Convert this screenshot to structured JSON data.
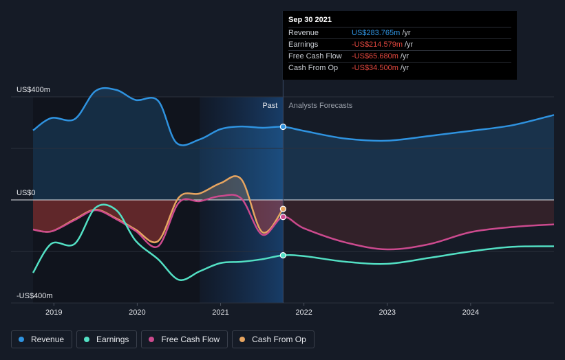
{
  "chart_data": {
    "type": "line",
    "currency_labels": {
      "top": "US$400m",
      "zero": "US$0",
      "bottom": "-US$400m"
    },
    "ylim": [
      -400,
      400
    ],
    "xlim": [
      2018.75,
      2025.0
    ],
    "x_ticks": [
      {
        "value": 2019,
        "label": "2019"
      },
      {
        "value": 2020,
        "label": "2020"
      },
      {
        "value": 2021,
        "label": "2021"
      },
      {
        "value": 2022,
        "label": "2022"
      },
      {
        "value": 2023,
        "label": "2023"
      },
      {
        "value": 2024,
        "label": "2024"
      }
    ],
    "past_label": "Past",
    "forecast_label": "Analysts Forecasts",
    "divider_x": 2021.75,
    "highlight_start": 2020.75,
    "series": [
      {
        "name": "Revenue",
        "color": "#2f93e0",
        "past": [
          [
            2018.75,
            270
          ],
          [
            2018.97,
            318
          ],
          [
            2019.25,
            314
          ],
          [
            2019.5,
            423
          ],
          [
            2019.75,
            427
          ],
          [
            2019.98,
            388
          ],
          [
            2020.25,
            385
          ],
          [
            2020.47,
            222
          ],
          [
            2020.75,
            235
          ],
          [
            2021.0,
            275
          ],
          [
            2021.25,
            285
          ],
          [
            2021.5,
            280
          ],
          [
            2021.75,
            284
          ]
        ],
        "forecast": [
          [
            2021.75,
            284
          ],
          [
            2022.0,
            268
          ],
          [
            2022.5,
            238
          ],
          [
            2023.0,
            230
          ],
          [
            2023.5,
            248
          ],
          [
            2024.0,
            268
          ],
          [
            2024.5,
            290
          ],
          [
            2025.0,
            330
          ]
        ]
      },
      {
        "name": "Earnings",
        "color": "#53e0c4",
        "past": [
          [
            2018.75,
            -283
          ],
          [
            2018.97,
            -170
          ],
          [
            2019.25,
            -170
          ],
          [
            2019.5,
            -30
          ],
          [
            2019.75,
            -40
          ],
          [
            2019.98,
            -158
          ],
          [
            2020.25,
            -230
          ],
          [
            2020.5,
            -310
          ],
          [
            2020.75,
            -277
          ],
          [
            2021.0,
            -245
          ],
          [
            2021.25,
            -240
          ],
          [
            2021.5,
            -230
          ],
          [
            2021.75,
            -215
          ]
        ],
        "forecast": [
          [
            2021.75,
            -215
          ],
          [
            2022.0,
            -218
          ],
          [
            2022.5,
            -240
          ],
          [
            2023.0,
            -248
          ],
          [
            2023.5,
            -225
          ],
          [
            2024.0,
            -200
          ],
          [
            2024.5,
            -182
          ],
          [
            2025.0,
            -180
          ]
        ]
      },
      {
        "name": "Free Cash Flow",
        "color": "#cc4a8e",
        "past": [
          [
            2018.75,
            -115
          ],
          [
            2018.97,
            -122
          ],
          [
            2019.25,
            -78
          ],
          [
            2019.5,
            -40
          ],
          [
            2019.75,
            -75
          ],
          [
            2019.98,
            -120
          ],
          [
            2020.25,
            -180
          ],
          [
            2020.5,
            -10
          ],
          [
            2020.75,
            -5
          ],
          [
            2021.0,
            15
          ],
          [
            2021.25,
            5
          ],
          [
            2021.5,
            -135
          ],
          [
            2021.75,
            -66
          ]
        ],
        "forecast": [
          [
            2021.75,
            -66
          ],
          [
            2022.0,
            -110
          ],
          [
            2022.5,
            -165
          ],
          [
            2023.0,
            -192
          ],
          [
            2023.5,
            -172
          ],
          [
            2024.0,
            -125
          ],
          [
            2024.5,
            -105
          ],
          [
            2025.0,
            -95
          ]
        ]
      },
      {
        "name": "Cash From Op",
        "color": "#e7a560",
        "past": [
          [
            2018.75,
            -115
          ],
          [
            2018.97,
            -122
          ],
          [
            2019.25,
            -75
          ],
          [
            2019.5,
            -38
          ],
          [
            2019.75,
            -72
          ],
          [
            2019.98,
            -115
          ],
          [
            2020.25,
            -160
          ],
          [
            2020.5,
            10
          ],
          [
            2020.75,
            25
          ],
          [
            2021.0,
            65
          ],
          [
            2021.25,
            80
          ],
          [
            2021.5,
            -125
          ],
          [
            2021.75,
            -35
          ]
        ],
        "forecast": []
      }
    ]
  },
  "tooltip": {
    "date": "Sep 30 2021",
    "rows": [
      {
        "label": "Revenue",
        "value": "US$283.765m",
        "unit": "/yr",
        "color": "#2f93e0"
      },
      {
        "label": "Earnings",
        "value": "-US$214.579m",
        "unit": "/yr",
        "color": "#e5483f"
      },
      {
        "label": "Free Cash Flow",
        "value": "-US$65.680m",
        "unit": "/yr",
        "color": "#e5483f"
      },
      {
        "label": "Cash From Op",
        "value": "-US$34.500m",
        "unit": "/yr",
        "color": "#e5483f"
      }
    ]
  },
  "legend": [
    {
      "label": "Revenue",
      "color": "#2f93e0"
    },
    {
      "label": "Earnings",
      "color": "#53e0c4"
    },
    {
      "label": "Free Cash Flow",
      "color": "#cc4a8e"
    },
    {
      "label": "Cash From Op",
      "color": "#e7a560"
    }
  ]
}
